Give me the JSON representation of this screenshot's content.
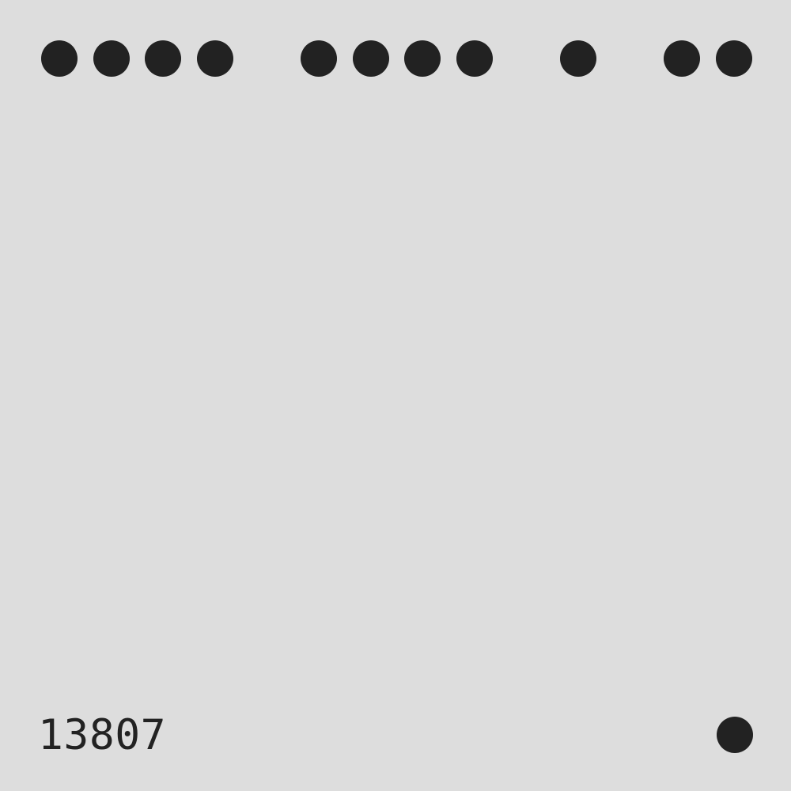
{
  "colors": {
    "background": "#dddddd",
    "ink": "#222222"
  },
  "dot_pattern": [
    1,
    1,
    1,
    1,
    0,
    1,
    1,
    1,
    1,
    0,
    1,
    0,
    1,
    1
  ],
  "serial_number": "13807",
  "corner_marker": "filled-dot"
}
